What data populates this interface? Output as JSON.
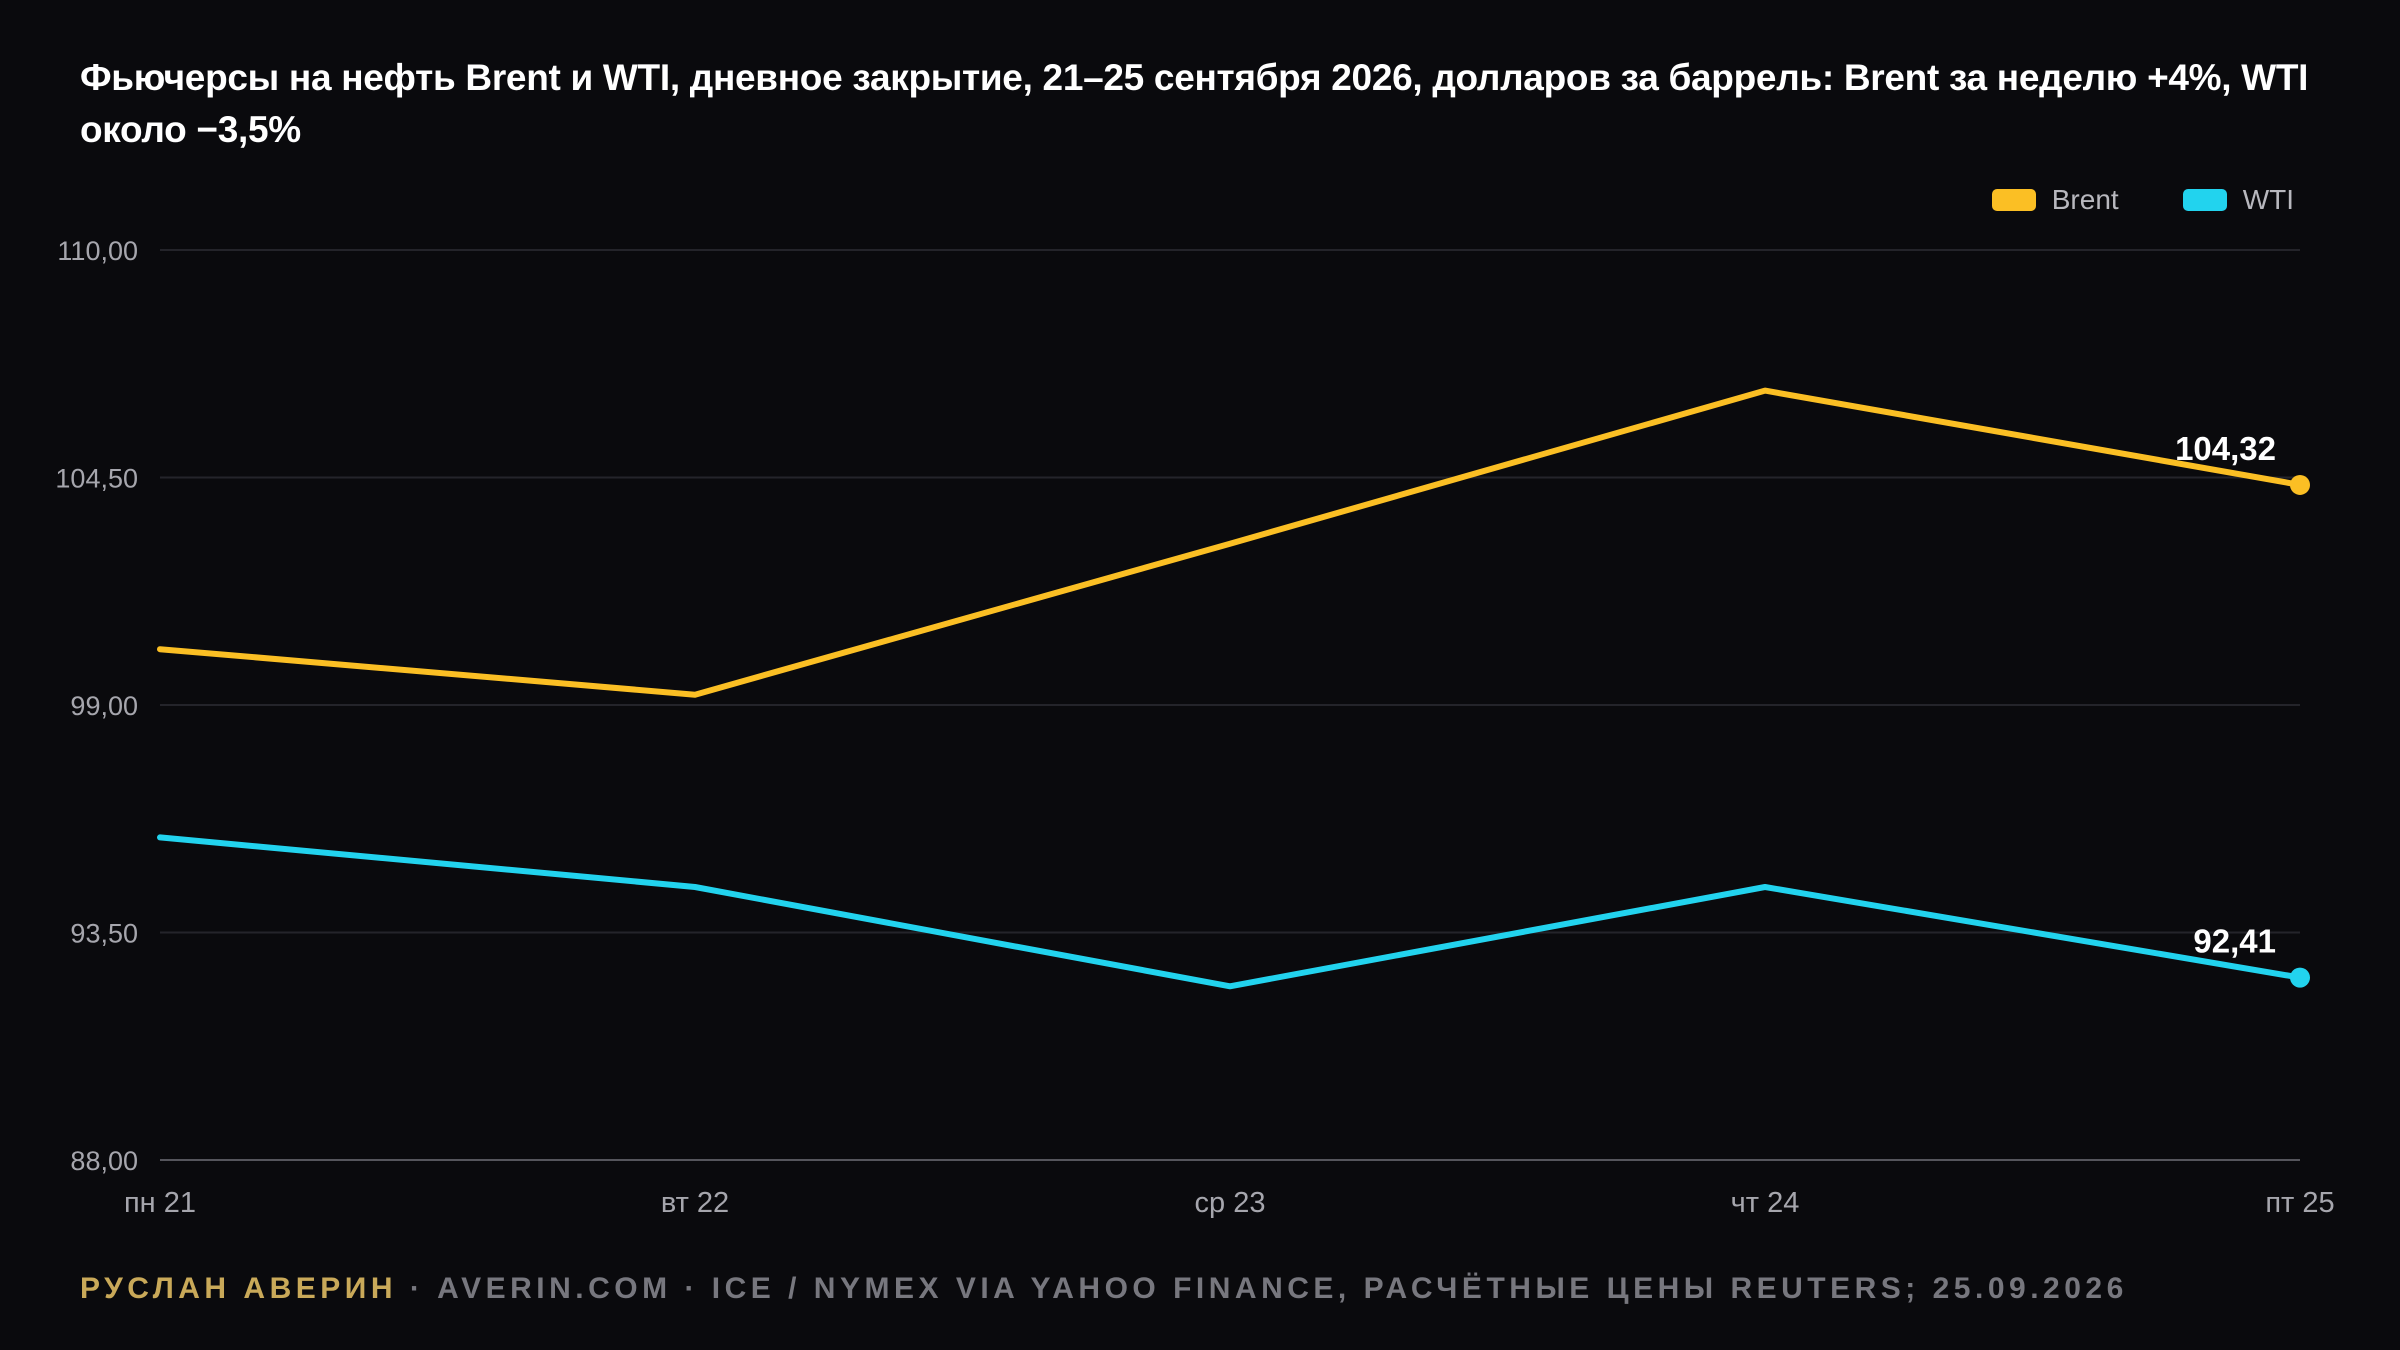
{
  "title": "Фьючерсы на нефть Brent и WTI, дневное закрытие, 21–25 сентября 2026, долларов за баррель: Brent за неделю +4%, WTI около −3,5%",
  "footer": {
    "author": "РУСЛАН АВЕРИН",
    "separator": " · ",
    "source": "AVERIN.COM · ICE / NYMEX VIA YAHOO FINANCE, РАСЧЁТНЫЕ ЦЕНЫ REUTERS; 25.09.2026"
  },
  "colors": {
    "background": "#0a0a0d",
    "grid": "#24242a",
    "axis": "#55555c",
    "tick_text": "#a6a6ad",
    "brent": "#fbbf24",
    "wti": "#22d3ee"
  },
  "chart_data": {
    "type": "line",
    "categories": [
      "пн 21",
      "вт 22",
      "ср 23",
      "чт 24",
      "пт 25"
    ],
    "series": [
      {
        "name": "Brent",
        "color": "#fbbf24",
        "values": [
          100.35,
          99.25,
          102.9,
          106.6,
          104.32
        ],
        "end_label": "104,32"
      },
      {
        "name": "WTI",
        "color": "#22d3ee",
        "values": [
          95.8,
          94.6,
          92.2,
          94.6,
          92.41
        ],
        "end_label": "92,41"
      }
    ],
    "yticks": [
      "88,00",
      "93,50",
      "99,00",
      "104,50",
      "110,00"
    ],
    "ylim": [
      88,
      110
    ],
    "grid": true,
    "legend": "top-right",
    "xlabel": "",
    "ylabel": ""
  }
}
